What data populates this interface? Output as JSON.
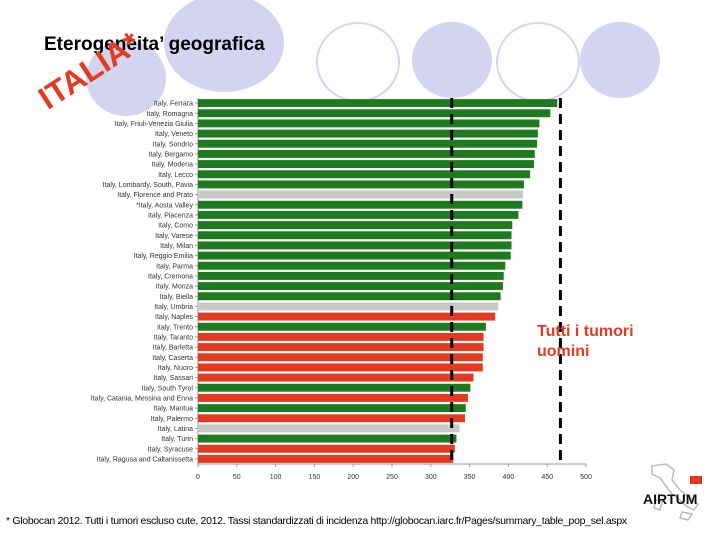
{
  "slide": {
    "title": "Eterogeneita’ geografica",
    "stamp": "ITALIA*",
    "annotation_line1": "Tutti i tumori",
    "annotation_line2": "uomini",
    "footnote": "* Globocan 2012. Tutti i tumori escluso cute, 2012. Tassi standardizzati di incidenza http://globocan.iarc.fr/Pages/summary_table_pop_sel.aspx",
    "logo_text": "AIRTUM"
  },
  "colors": {
    "green": "#1e7a1e",
    "red": "#e53a20",
    "grey": "#c8c8c8",
    "deco": "#d4d4f0"
  },
  "chart_data": {
    "type": "bar",
    "orientation": "horizontal",
    "xlim": [
      0,
      500
    ],
    "xticks": [
      0,
      50,
      100,
      150,
      200,
      250,
      300,
      350,
      400,
      450,
      500
    ],
    "reference_lines": [
      327,
      467
    ],
    "categories": [
      "Italy, Ferrara",
      "Italy, Romagna",
      "Italy, Friuli-Venezia Giulia",
      "Italy, Veneto",
      "Italy, Sondrio",
      "Italy, Bergamo",
      "Italy, Modena",
      "Italy, Lecco",
      "Italy, Lombardy, South, Pavia",
      "Italy, Florence and Prato",
      "*Italy, Aosta Valley",
      "Italy, Piacenza",
      "Italy, Como",
      "Italy, Varese",
      "Italy, Milan",
      "Italy, Reggio Emilia",
      "Italy, Parma",
      "Italy, Cremona",
      "Italy, Monza",
      "Italy, Biella",
      "Italy, Umbria",
      "Italy, Naples",
      "Italy, Trento",
      "Italy, Taranto",
      "Italy, Barletta",
      "Italy, Caserta",
      "Italy, Nuoro",
      "Italy, Sassari",
      "Italy, South Tyrol",
      "Italy, Catania, Messina and Enna",
      "Italy, Mantua",
      "Italy, Palermo",
      "Italy, Latina",
      "Italy, Turin",
      "Italy, Syracuse",
      "Italy, Ragusa and Caltanissetta"
    ],
    "values": [
      463,
      454,
      440,
      438,
      437,
      434,
      433,
      428,
      420,
      419,
      418,
      413,
      405,
      404,
      404,
      403,
      396,
      394,
      393,
      390,
      387,
      383,
      371,
      368,
      368,
      367,
      367,
      355,
      351,
      348,
      345,
      344,
      337,
      333,
      331,
      329
    ],
    "bar_colors": [
      "green",
      "green",
      "green",
      "green",
      "green",
      "green",
      "green",
      "green",
      "green",
      "grey",
      "green",
      "green",
      "green",
      "green",
      "green",
      "green",
      "green",
      "green",
      "green",
      "green",
      "grey",
      "red",
      "green",
      "red",
      "red",
      "red",
      "red",
      "red",
      "green",
      "red",
      "green",
      "red",
      "grey",
      "green",
      "red",
      "red"
    ]
  }
}
